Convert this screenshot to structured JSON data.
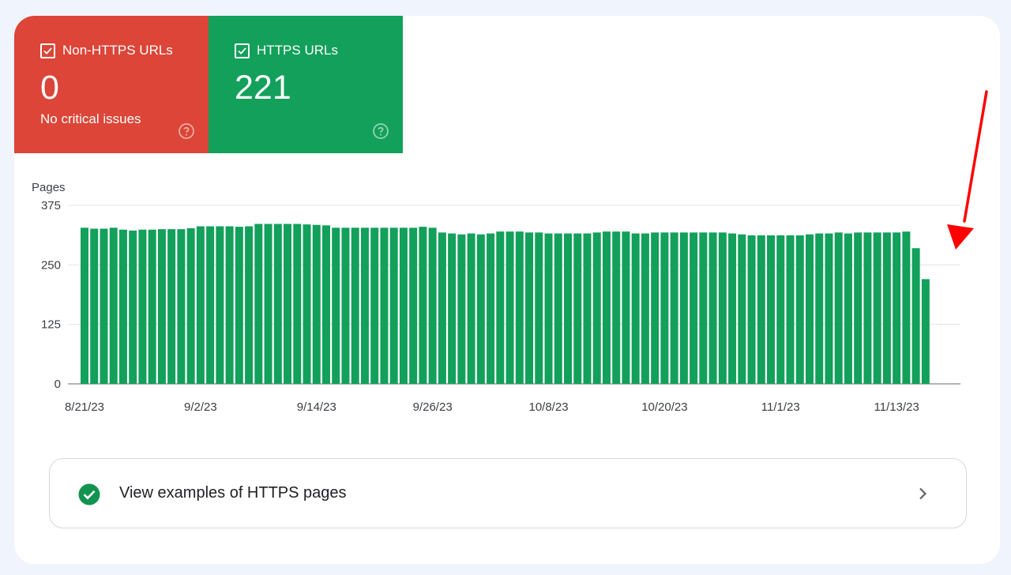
{
  "tiles": [
    {
      "label": "Non-HTTPS URLs",
      "value": "0",
      "sub": "No critical issues",
      "color": "#dc4537",
      "icons": [
        "checkbox-checked-icon",
        "help-circle-icon"
      ]
    },
    {
      "label": "HTTPS URLs",
      "value": "221",
      "sub": "",
      "color": "#12a05b",
      "icons": [
        "checkbox-checked-icon",
        "help-circle-icon"
      ]
    }
  ],
  "cta": {
    "label": "View examples of HTTPS pages",
    "icons": [
      "check-circle-icon",
      "chevron-right-icon"
    ]
  },
  "annotation": {
    "type": "arrow",
    "color": "#ff0000"
  },
  "chart_data": {
    "type": "bar",
    "title": "",
    "ylabel": "Pages",
    "xlabel": "",
    "ylim": [
      0,
      375
    ],
    "yticks": [
      0,
      125,
      250,
      375
    ],
    "xtick_labels": [
      "8/21/23",
      "9/2/23",
      "9/14/23",
      "9/26/23",
      "10/8/23",
      "10/20/23",
      "11/1/23",
      "11/13/23"
    ],
    "grid": true,
    "color": "#12a05b",
    "x_start": "8/21/23",
    "x_end": "11/18/23",
    "values": [
      328,
      326,
      326,
      328,
      324,
      322,
      324,
      324,
      325,
      325,
      325,
      327,
      331,
      331,
      331,
      331,
      330,
      331,
      336,
      336,
      336,
      336,
      336,
      335,
      334,
      333,
      328,
      328,
      328,
      328,
      328,
      328,
      328,
      328,
      328,
      330,
      328,
      318,
      316,
      314,
      316,
      314,
      316,
      320,
      320,
      320,
      318,
      318,
      316,
      316,
      316,
      316,
      316,
      318,
      320,
      320,
      320,
      316,
      316,
      318,
      318,
      318,
      318,
      318,
      318,
      318,
      318,
      316,
      314,
      312,
      312,
      312,
      312,
      312,
      312,
      314,
      316,
      316,
      318,
      316,
      318,
      318,
      318,
      318,
      318,
      320,
      285,
      220
    ]
  }
}
